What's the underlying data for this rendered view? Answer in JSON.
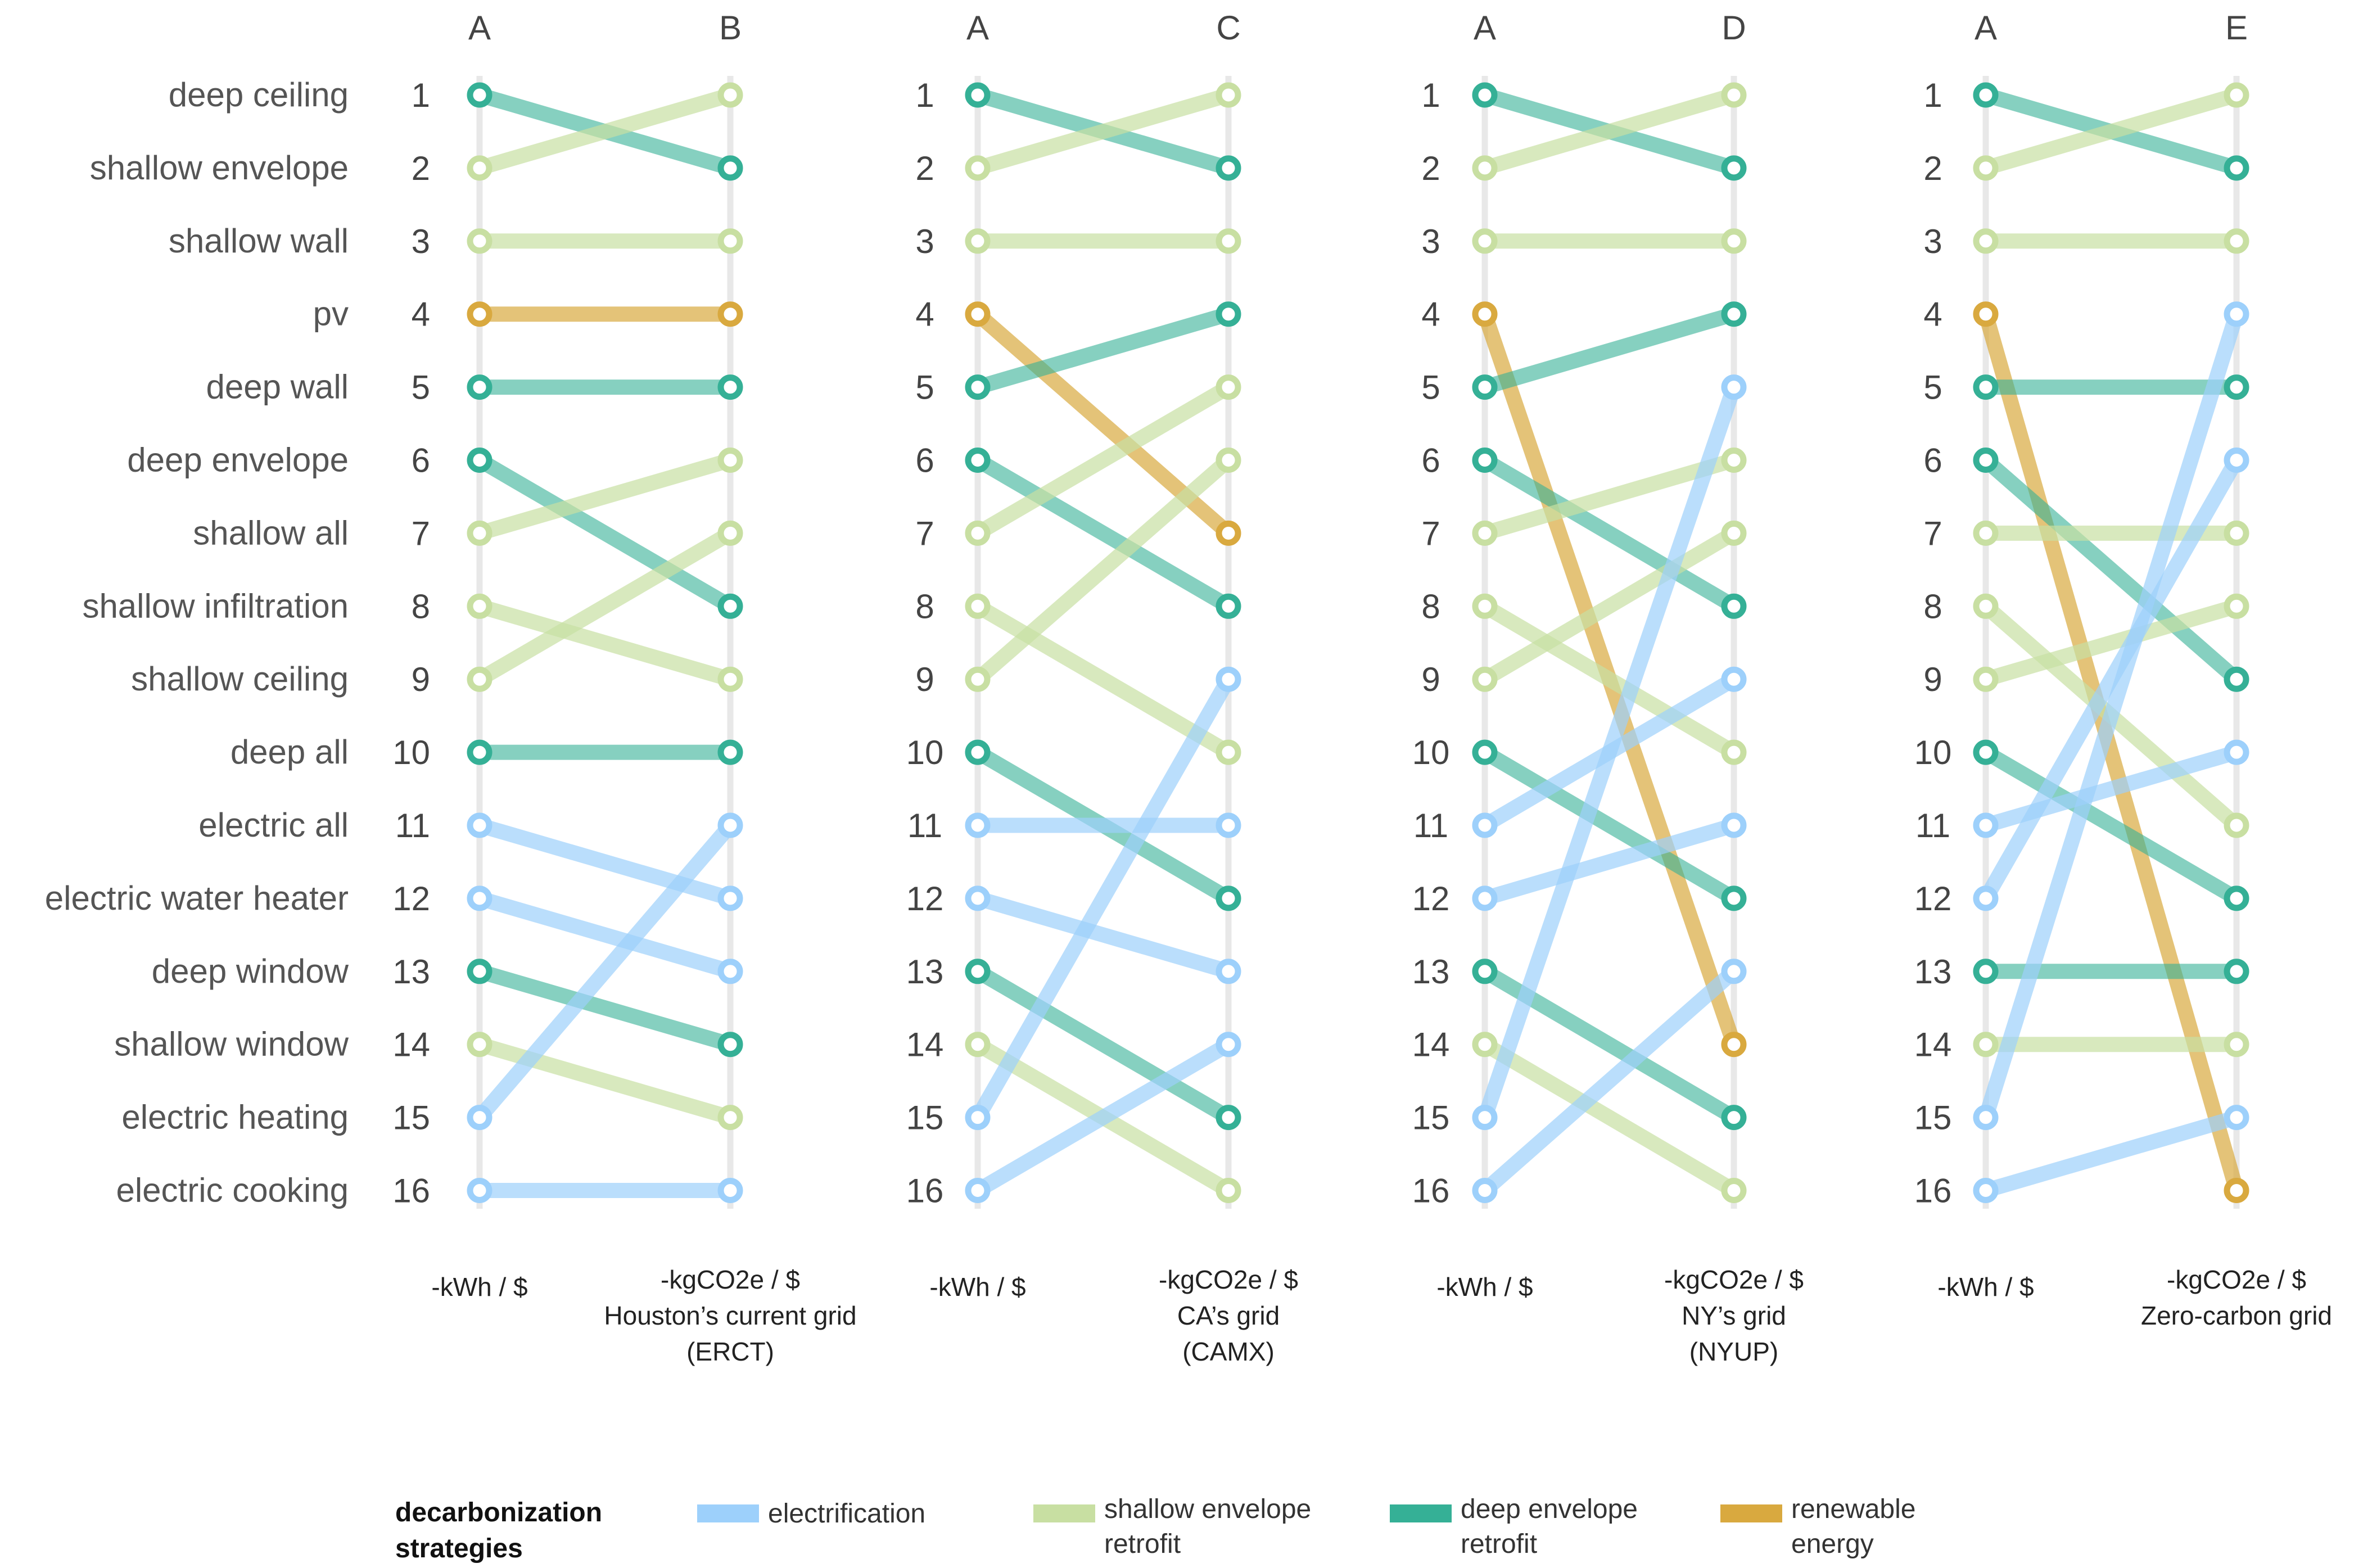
{
  "chart_data": {
    "type": "slope",
    "strategies": [
      {
        "name": "deep ceiling",
        "category": "deep"
      },
      {
        "name": "shallow envelope",
        "category": "shallow"
      },
      {
        "name": "shallow wall",
        "category": "shallow"
      },
      {
        "name": "pv",
        "category": "renewable"
      },
      {
        "name": "deep wall",
        "category": "deep"
      },
      {
        "name": "deep envelope",
        "category": "deep"
      },
      {
        "name": "shallow all",
        "category": "shallow"
      },
      {
        "name": "shallow infiltration",
        "category": "shallow"
      },
      {
        "name": "shallow ceiling",
        "category": "shallow"
      },
      {
        "name": "deep all",
        "category": "deep"
      },
      {
        "name": "electric all",
        "category": "electrification"
      },
      {
        "name": "electric water heater",
        "category": "electrification"
      },
      {
        "name": "deep window",
        "category": "deep"
      },
      {
        "name": "shallow window",
        "category": "shallow"
      },
      {
        "name": "electric heating",
        "category": "electrification"
      },
      {
        "name": "electric cooking",
        "category": "electrification"
      }
    ],
    "left_ranks": [
      1,
      2,
      3,
      4,
      5,
      6,
      7,
      8,
      9,
      10,
      11,
      12,
      13,
      14,
      15,
      16
    ],
    "panels": [
      {
        "left_header": "A",
        "right_header": "B",
        "left_label": [
          "-kWh / $"
        ],
        "right_label": [
          "-kgCO2e / $",
          "Houston’s current grid",
          "(ERCT)"
        ],
        "right_ranks": [
          2,
          1,
          3,
          4,
          5,
          8,
          6,
          9,
          7,
          10,
          12,
          13,
          14,
          15,
          11,
          16
        ]
      },
      {
        "left_header": "A",
        "right_header": "C",
        "left_label": [
          "-kWh / $"
        ],
        "right_label": [
          "-kgCO2e / $",
          "CA’s grid",
          "(CAMX)"
        ],
        "right_ranks": [
          2,
          1,
          3,
          7,
          4,
          8,
          5,
          10,
          6,
          12,
          11,
          13,
          15,
          16,
          9,
          14
        ]
      },
      {
        "left_header": "A",
        "right_header": "D",
        "left_label": [
          "-kWh / $"
        ],
        "right_label": [
          "-kgCO2e / $",
          "NY’s grid",
          "(NYUP)"
        ],
        "right_ranks": [
          2,
          1,
          3,
          14,
          4,
          8,
          6,
          10,
          7,
          12,
          9,
          11,
          15,
          16,
          5,
          13
        ]
      },
      {
        "left_header": "A",
        "right_header": "E",
        "left_label": [
          "-kWh / $"
        ],
        "right_label": [
          "-kgCO2e / $",
          "Zero-carbon grid"
        ],
        "right_ranks": [
          2,
          1,
          3,
          16,
          5,
          9,
          7,
          11,
          8,
          12,
          10,
          6,
          13,
          14,
          4,
          15
        ]
      }
    ],
    "legend": {
      "title": [
        "decarbonization",
        "strategies"
      ],
      "placement": "bottom",
      "items": [
        {
          "key": "electrification",
          "label": [
            "electrification"
          ],
          "color": "#9dd0fb"
        },
        {
          "key": "shallow",
          "label": [
            "shallow envelope",
            "retrofit"
          ],
          "color": "#c8dfa2"
        },
        {
          "key": "deep",
          "label": [
            "deep envelope",
            "retrofit"
          ],
          "color": "#35b096"
        },
        {
          "key": "renewable",
          "label": [
            "renewable",
            "energy"
          ],
          "color": "#d9a93f"
        }
      ]
    }
  }
}
